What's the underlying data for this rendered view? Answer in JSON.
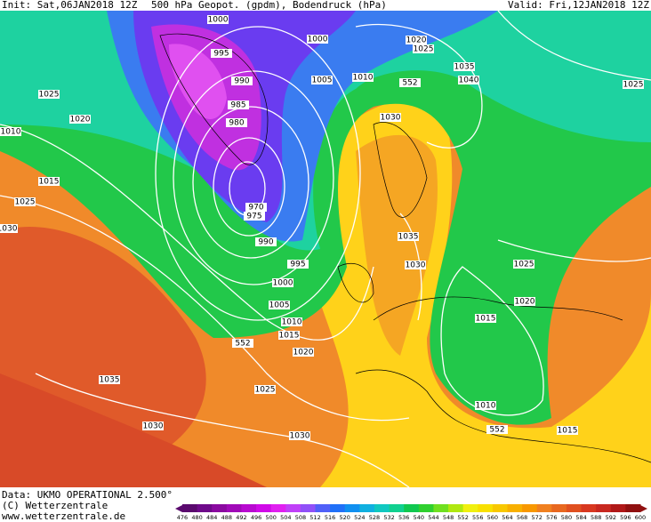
{
  "header": {
    "init": "Init: Sat,06JAN2018 12Z",
    "title": "500 hPa Geopot. (gpdm), Bodendruck (hPa)",
    "valid": "Valid: Fri,12JAN2018 12Z"
  },
  "isobar_labels": [
    "1000",
    "1000",
    "995",
    "990",
    "985",
    "980",
    "970",
    "975",
    "990",
    "995",
    "1000",
    "1005",
    "1010",
    "1015",
    "1020",
    "1025",
    "1030",
    "1030",
    "1035",
    "1025",
    "1030",
    "1015",
    "1010",
    "1020",
    "1025",
    "1005",
    "1010",
    "1020",
    "1025",
    "1035",
    "1040",
    "1030",
    "1035",
    "1030",
    "1025",
    "1020",
    "1015",
    "1010",
    "1015",
    "1025",
    "552",
    "552",
    "552"
  ],
  "colorbar": {
    "ticks": [
      476,
      480,
      484,
      488,
      492,
      496,
      500,
      504,
      508,
      512,
      516,
      520,
      524,
      528,
      532,
      536,
      540,
      544,
      548,
      552,
      556,
      560,
      564,
      568,
      572,
      576,
      580,
      584,
      588,
      592,
      596,
      600
    ]
  },
  "footer": {
    "source": "Data: UKMO OPERATIONAL 2.500°",
    "copyright": "(C) Wetterzentrale",
    "url": "www.wetterzentrale.de"
  }
}
